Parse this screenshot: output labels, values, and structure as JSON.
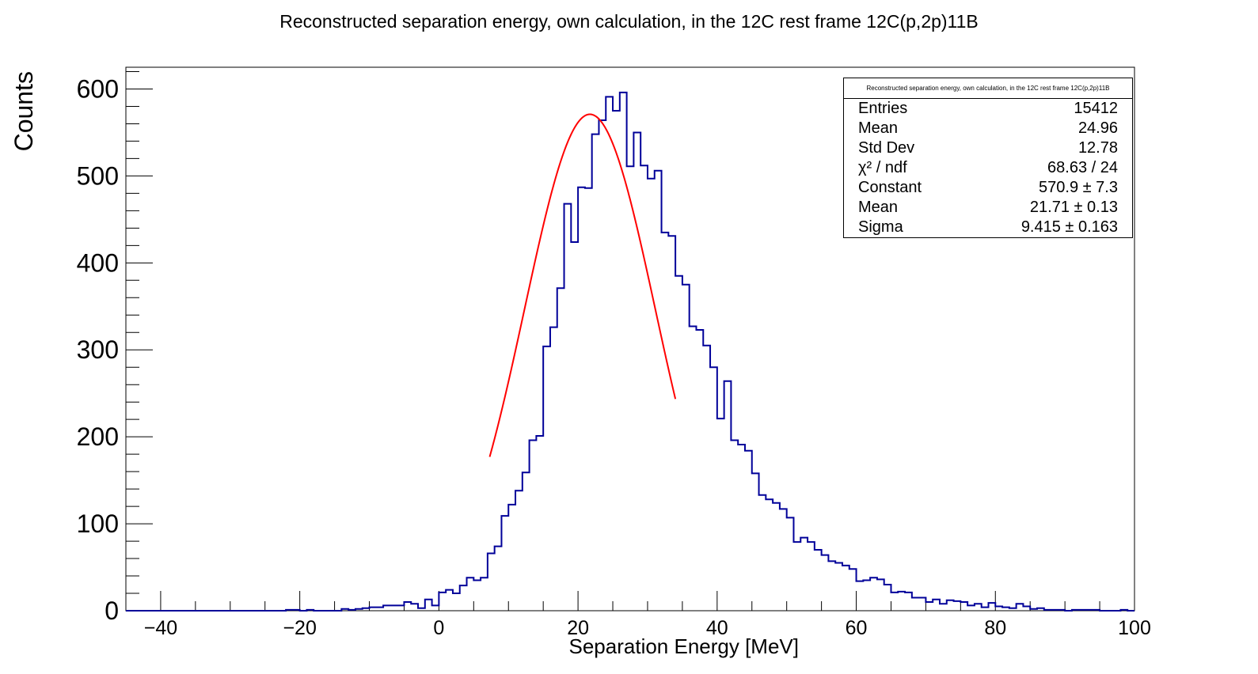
{
  "chart_data": {
    "type": "histogram",
    "title": "Reconstructed separation energy, own calculation, in the 12C rest frame 12C(p,2p)11B",
    "xlabel": "Separation Energy [MeV]",
    "ylabel": "Counts",
    "xlim": [
      -45,
      100
    ],
    "ylim": [
      0,
      625
    ],
    "x_ticks": [
      -40,
      -20,
      0,
      20,
      40,
      60,
      80,
      100
    ],
    "x_tick_labels": [
      "−40",
      "−20",
      "0",
      "20",
      "40",
      "60",
      "80",
      "100"
    ],
    "y_ticks": [
      0,
      100,
      200,
      300,
      400,
      500,
      600
    ],
    "y_tick_labels": [
      "0",
      "100",
      "200",
      "300",
      "400",
      "500",
      "600"
    ],
    "bin_start": -45,
    "bin_width": 1,
    "counts": [
      0,
      0,
      0,
      0,
      0,
      0,
      0,
      0,
      0,
      0,
      0,
      0,
      0,
      0,
      0,
      0,
      0,
      0,
      0,
      0,
      0,
      0,
      0,
      1,
      1,
      0,
      1,
      0,
      0,
      0,
      0,
      2,
      1,
      2,
      3,
      4,
      4,
      6,
      6,
      6,
      10,
      8,
      3,
      13,
      6,
      21,
      24,
      20,
      29,
      38,
      35,
      38,
      66,
      74,
      109,
      122,
      138,
      159,
      196,
      201,
      304,
      326,
      371,
      468,
      424,
      487,
      486,
      548,
      564,
      591,
      575,
      596,
      511,
      550,
      512,
      497,
      506,
      435,
      431,
      385,
      375,
      327,
      323,
      305,
      280,
      221,
      264,
      196,
      191,
      184,
      158,
      133,
      128,
      124,
      117,
      107,
      79,
      84,
      79,
      70,
      64,
      57,
      55,
      52,
      48,
      34,
      35,
      38,
      36,
      30,
      21,
      22,
      21,
      15,
      15,
      10,
      13,
      8,
      12,
      11,
      10,
      6,
      8,
      4,
      9,
      5,
      4,
      3,
      8,
      5,
      2,
      3,
      1,
      1,
      1,
      0,
      1,
      1,
      1,
      1,
      0,
      0,
      0,
      1,
      0
    ],
    "fit": {
      "type": "gaus",
      "constant": 570.9,
      "mean": 21.71,
      "sigma": 9.415,
      "range": [
        7.3,
        34
      ]
    },
    "colors": {
      "histogram": "#000099",
      "fit": "#ff0000"
    },
    "stats": {
      "title": "Reconstructed separation energy, own calculation, in the 12C rest frame 12C(p,2p)11B",
      "rows": [
        {
          "key": "Entries",
          "value": "15412"
        },
        {
          "key": "Mean",
          "value": "24.96"
        },
        {
          "key": "Std Dev",
          "value": "12.78"
        },
        {
          "key": "χ² / ndf",
          "value": "68.63 / 24"
        },
        {
          "key": "Constant",
          "value": "570.9 ± 7.3"
        },
        {
          "key": "Mean",
          "value": "21.71 ± 0.13"
        },
        {
          "key": "Sigma",
          "value": "9.415 ± 0.163"
        }
      ]
    }
  }
}
